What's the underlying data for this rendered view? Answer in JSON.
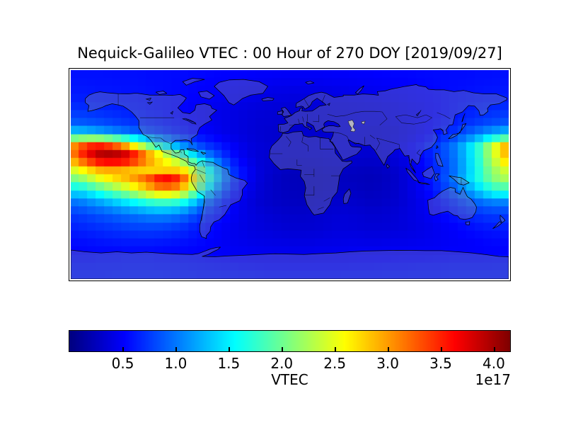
{
  "figure": {
    "title": "Nequick-Galileo VTEC : 00 Hour of 270 DOY [2019/09/27]",
    "background": "#ffffff"
  },
  "colorbar": {
    "label": "VTEC",
    "offset_label": "1e17",
    "ticks": [
      0.5,
      1.0,
      1.5,
      2.0,
      2.5,
      3.0,
      3.5,
      4.0
    ],
    "tick_labels": [
      "0.5",
      "1.0",
      "1.5",
      "2.0",
      "2.5",
      "3.0",
      "3.5",
      "4.0"
    ],
    "vmin": 0,
    "vmax": 4.15,
    "colormap": "jet",
    "orientation": "horizontal"
  },
  "chart_data": {
    "type": "heatmap",
    "title": "Nequick-Galileo VTEC : 00 Hour of 270 DOY [2019/09/27]",
    "projection": "equirectangular world map, lon -180..180, lat 90..-90",
    "overlay": [
      "coastlines",
      "country-borders",
      "lakes",
      "caspian-sea"
    ],
    "colormap": "jet",
    "units": "VTEC (scale 1e17)",
    "vmax_1e17": 4.15,
    "vmin_1e17": 0,
    "lon_centers": [
      -175,
      -165,
      -155,
      -145,
      -135,
      -125,
      -115,
      -105,
      -95,
      -85,
      -75,
      -65,
      -55,
      -45,
      -35,
      -25,
      -15,
      -5,
      5,
      15,
      25,
      35,
      45,
      55,
      65,
      75,
      85,
      95,
      105,
      115,
      125,
      135,
      145,
      155,
      165,
      175
    ],
    "lat_centers": [
      85,
      75,
      65,
      55,
      45,
      35,
      25,
      15,
      5,
      -5,
      -15,
      -25,
      -35,
      -45,
      -55,
      -65,
      -75,
      -85
    ],
    "values_1e17": [
      [
        0.58,
        0.58,
        0.58,
        0.57,
        0.57,
        0.57,
        0.56,
        0.56,
        0.55,
        0.55,
        0.54,
        0.53,
        0.52,
        0.52,
        0.51,
        0.5,
        0.5,
        0.49,
        0.49,
        0.49,
        0.49,
        0.5,
        0.5,
        0.51,
        0.51,
        0.52,
        0.53,
        0.53,
        0.54,
        0.55,
        0.55,
        0.56,
        0.56,
        0.57,
        0.57,
        0.58
      ],
      [
        0.6,
        0.6,
        0.59,
        0.59,
        0.58,
        0.58,
        0.57,
        0.56,
        0.55,
        0.54,
        0.52,
        0.51,
        0.49,
        0.48,
        0.46,
        0.45,
        0.44,
        0.43,
        0.43,
        0.43,
        0.43,
        0.44,
        0.45,
        0.46,
        0.47,
        0.48,
        0.49,
        0.5,
        0.52,
        0.53,
        0.55,
        0.56,
        0.57,
        0.58,
        0.59,
        0.6
      ],
      [
        0.64,
        0.63,
        0.62,
        0.61,
        0.6,
        0.59,
        0.58,
        0.56,
        0.55,
        0.53,
        0.51,
        0.49,
        0.47,
        0.45,
        0.43,
        0.41,
        0.4,
        0.39,
        0.38,
        0.38,
        0.39,
        0.4,
        0.41,
        0.42,
        0.43,
        0.44,
        0.46,
        0.48,
        0.5,
        0.52,
        0.54,
        0.57,
        0.59,
        0.61,
        0.62,
        0.63
      ],
      [
        0.72,
        0.7,
        0.68,
        0.66,
        0.64,
        0.62,
        0.59,
        0.57,
        0.54,
        0.51,
        0.48,
        0.45,
        0.43,
        0.4,
        0.38,
        0.36,
        0.35,
        0.34,
        0.34,
        0.34,
        0.35,
        0.36,
        0.37,
        0.38,
        0.39,
        0.4,
        0.42,
        0.44,
        0.47,
        0.5,
        0.54,
        0.58,
        0.62,
        0.66,
        0.69,
        0.71
      ],
      [
        0.88,
        0.85,
        0.82,
        0.78,
        0.74,
        0.7,
        0.66,
        0.62,
        0.58,
        0.54,
        0.5,
        0.46,
        0.43,
        0.4,
        0.37,
        0.35,
        0.34,
        0.33,
        0.33,
        0.33,
        0.34,
        0.35,
        0.37,
        0.38,
        0.38,
        0.38,
        0.4,
        0.43,
        0.47,
        0.52,
        0.57,
        0.63,
        0.69,
        0.75,
        0.81,
        0.85
      ],
      [
        1.4,
        1.32,
        1.22,
        1.12,
        1.02,
        0.92,
        0.83,
        0.75,
        0.67,
        0.6,
        0.54,
        0.49,
        0.44,
        0.4,
        0.37,
        0.34,
        0.32,
        0.31,
        0.31,
        0.31,
        0.32,
        0.34,
        0.36,
        0.35,
        0.34,
        0.34,
        0.36,
        0.4,
        0.46,
        0.53,
        0.62,
        0.73,
        0.87,
        1.02,
        1.17,
        1.3
      ],
      [
        3.1,
        3.45,
        3.5,
        3.3,
        2.9,
        2.4,
        1.95,
        1.55,
        1.25,
        1.0,
        0.8,
        0.68,
        0.58,
        0.48,
        0.4,
        0.36,
        0.34,
        0.33,
        0.33,
        0.33,
        0.34,
        0.36,
        0.37,
        0.36,
        0.35,
        0.36,
        0.4,
        0.46,
        0.55,
        0.66,
        0.8,
        1.0,
        1.3,
        1.7,
        2.25,
        2.8
      ],
      [
        3.3,
        3.75,
        4.05,
        4.15,
        4.05,
        3.7,
        3.2,
        2.75,
        2.3,
        1.85,
        1.4,
        1.0,
        0.75,
        0.55,
        0.42,
        0.36,
        0.33,
        0.31,
        0.3,
        0.3,
        0.31,
        0.33,
        0.34,
        0.33,
        0.32,
        0.33,
        0.37,
        0.43,
        0.52,
        0.63,
        0.78,
        0.98,
        1.28,
        1.7,
        2.25,
        2.75
      ],
      [
        2.55,
        2.8,
        3.0,
        3.0,
        2.9,
        2.75,
        2.65,
        2.6,
        2.65,
        2.55,
        2.05,
        1.5,
        1.05,
        0.7,
        0.5,
        0.38,
        0.32,
        0.28,
        0.26,
        0.26,
        0.27,
        0.28,
        0.28,
        0.27,
        0.26,
        0.27,
        0.31,
        0.37,
        0.46,
        0.58,
        0.74,
        0.95,
        1.25,
        1.65,
        2.1,
        2.4
      ],
      [
        1.95,
        2.2,
        2.45,
        2.65,
        2.85,
        3.1,
        3.4,
        3.8,
        3.75,
        3.2,
        2.4,
        1.65,
        1.1,
        0.72,
        0.5,
        0.37,
        0.3,
        0.26,
        0.24,
        0.24,
        0.25,
        0.26,
        0.26,
        0.25,
        0.24,
        0.25,
        0.29,
        0.36,
        0.46,
        0.6,
        0.78,
        1.0,
        1.3,
        1.65,
        2.0,
        2.25
      ],
      [
        1.35,
        1.5,
        1.7,
        1.9,
        2.1,
        2.35,
        2.6,
        2.8,
        2.75,
        2.4,
        1.8,
        1.25,
        0.85,
        0.6,
        0.44,
        0.35,
        0.3,
        0.27,
        0.25,
        0.25,
        0.26,
        0.28,
        0.29,
        0.28,
        0.26,
        0.27,
        0.3,
        0.36,
        0.44,
        0.55,
        0.68,
        0.85,
        1.05,
        1.3,
        1.55,
        1.7
      ],
      [
        0.95,
        1.05,
        1.15,
        1.27,
        1.4,
        1.52,
        1.65,
        1.72,
        1.68,
        1.5,
        1.15,
        0.85,
        0.65,
        0.5,
        0.4,
        0.34,
        0.3,
        0.28,
        0.27,
        0.27,
        0.29,
        0.31,
        0.32,
        0.31,
        0.29,
        0.29,
        0.32,
        0.36,
        0.42,
        0.49,
        0.58,
        0.68,
        0.79,
        0.9,
        0.98,
        1.0
      ],
      [
        0.75,
        0.8,
        0.85,
        0.9,
        0.95,
        1.0,
        1.05,
        1.07,
        1.03,
        0.93,
        0.78,
        0.65,
        0.55,
        0.47,
        0.41,
        0.37,
        0.34,
        0.32,
        0.31,
        0.31,
        0.33,
        0.35,
        0.36,
        0.35,
        0.33,
        0.33,
        0.35,
        0.38,
        0.42,
        0.47,
        0.53,
        0.59,
        0.65,
        0.71,
        0.75,
        0.76
      ],
      [
        0.66,
        0.69,
        0.72,
        0.75,
        0.78,
        0.8,
        0.81,
        0.8,
        0.77,
        0.71,
        0.63,
        0.56,
        0.5,
        0.45,
        0.41,
        0.38,
        0.36,
        0.34,
        0.33,
        0.33,
        0.34,
        0.36,
        0.37,
        0.36,
        0.35,
        0.35,
        0.36,
        0.38,
        0.41,
        0.44,
        0.48,
        0.52,
        0.56,
        0.6,
        0.63,
        0.64
      ],
      [
        0.58,
        0.6,
        0.62,
        0.64,
        0.65,
        0.66,
        0.66,
        0.65,
        0.63,
        0.6,
        0.56,
        0.52,
        0.48,
        0.45,
        0.43,
        0.41,
        0.4,
        0.39,
        0.38,
        0.38,
        0.39,
        0.4,
        0.41,
        0.41,
        0.4,
        0.4,
        0.41,
        0.42,
        0.43,
        0.45,
        0.47,
        0.49,
        0.51,
        0.53,
        0.55,
        0.56
      ],
      [
        0.53,
        0.54,
        0.55,
        0.55,
        0.56,
        0.56,
        0.56,
        0.55,
        0.54,
        0.53,
        0.52,
        0.5,
        0.49,
        0.47,
        0.46,
        0.45,
        0.44,
        0.44,
        0.43,
        0.43,
        0.44,
        0.44,
        0.45,
        0.46,
        0.46,
        0.46,
        0.47,
        0.47,
        0.48,
        0.48,
        0.49,
        0.5,
        0.5,
        0.51,
        0.52,
        0.52
      ],
      [
        0.58,
        0.58,
        0.59,
        0.59,
        0.6,
        0.6,
        0.6,
        0.59,
        0.59,
        0.58,
        0.57,
        0.56,
        0.55,
        0.54,
        0.53,
        0.52,
        0.52,
        0.51,
        0.51,
        0.51,
        0.51,
        0.52,
        0.52,
        0.53,
        0.53,
        0.54,
        0.54,
        0.55,
        0.55,
        0.56,
        0.56,
        0.57,
        0.57,
        0.57,
        0.58,
        0.58
      ],
      [
        0.62,
        0.62,
        0.62,
        0.63,
        0.63,
        0.63,
        0.63,
        0.63,
        0.62,
        0.62,
        0.61,
        0.61,
        0.6,
        0.6,
        0.59,
        0.59,
        0.58,
        0.58,
        0.58,
        0.58,
        0.58,
        0.58,
        0.59,
        0.59,
        0.59,
        0.6,
        0.6,
        0.6,
        0.61,
        0.61,
        0.61,
        0.62,
        0.62,
        0.62,
        0.62,
        0.62
      ]
    ]
  }
}
